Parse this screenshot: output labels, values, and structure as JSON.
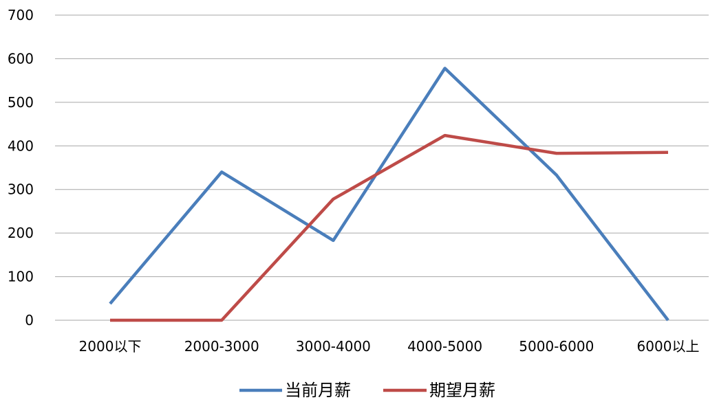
{
  "chart_data": {
    "type": "line",
    "title": "",
    "xlabel": "",
    "ylabel": "",
    "categories": [
      "2000以下",
      "2000-3000",
      "3000-4000",
      "4000-5000",
      "5000-6000",
      "6000以上"
    ],
    "ylim": [
      0,
      700
    ],
    "yticks": [
      0,
      100,
      200,
      300,
      400,
      500,
      600,
      700
    ],
    "grid": true,
    "legend_position": "bottom",
    "series": [
      {
        "name": "当前月薪",
        "color": "#4a7ebb",
        "values": [
          38,
          340,
          183,
          578,
          333,
          0
        ]
      },
      {
        "name": "期望月薪",
        "color": "#be4b48",
        "values": [
          0,
          0,
          278,
          424,
          383,
          385
        ]
      }
    ]
  }
}
